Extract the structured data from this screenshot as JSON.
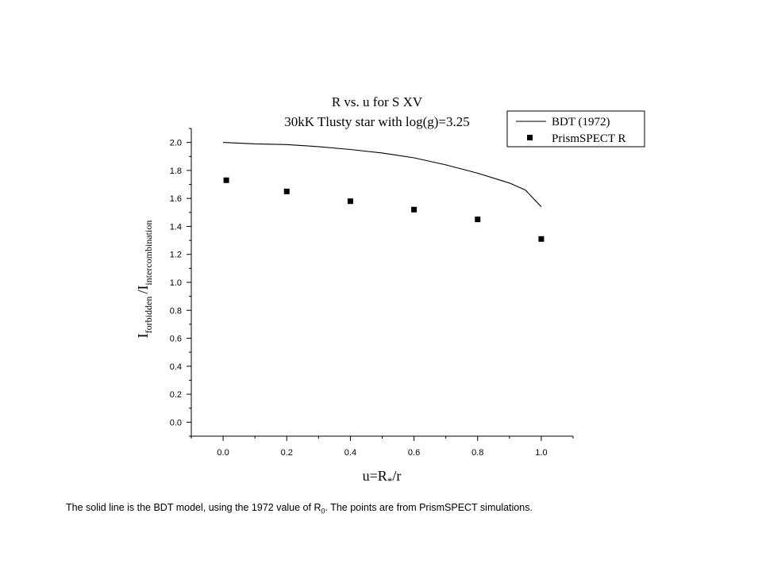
{
  "chart_data": {
    "type": "line",
    "title": "R vs. u for S XV",
    "subtitle": "30kK Tlusty star with log(g)=3.25",
    "xlabel": {
      "main": "u=R",
      "sub": "*",
      "tail": "/r"
    },
    "ylabel": {
      "main1": "I",
      "sub1": "forbidden",
      "slash": "/",
      "main2": "I",
      "sub2": "intercombination"
    },
    "xlim": [
      -0.1,
      1.1
    ],
    "ylim": [
      -0.1,
      2.1
    ],
    "x_ticks": [
      "0.0",
      "0.2",
      "0.4",
      "0.6",
      "0.8",
      "1.0"
    ],
    "y_ticks": [
      "0.0",
      "0.2",
      "0.4",
      "0.6",
      "0.8",
      "1.0",
      "1.2",
      "1.4",
      "1.6",
      "1.8",
      "2.0"
    ],
    "legend_position": "top-right",
    "series": [
      {
        "name": "BDT (1972)",
        "style": "line",
        "x": [
          0.0,
          0.1,
          0.2,
          0.3,
          0.4,
          0.5,
          0.6,
          0.7,
          0.8,
          0.9,
          0.95,
          1.0
        ],
        "y": [
          2.0,
          1.99,
          1.985,
          1.97,
          1.95,
          1.925,
          1.89,
          1.84,
          1.78,
          1.71,
          1.66,
          1.54
        ]
      },
      {
        "name": "PrismSPECT R",
        "style": "square-markers",
        "x": [
          0.01,
          0.2,
          0.4,
          0.6,
          0.8,
          1.0
        ],
        "y": [
          1.73,
          1.65,
          1.58,
          1.52,
          1.45,
          1.31
        ]
      }
    ]
  },
  "caption": {
    "before": "The solid line is the BDT model, using the 1972 value of R",
    "sub": "0",
    "after": ".  The points are from PrismSPECT simulations."
  }
}
